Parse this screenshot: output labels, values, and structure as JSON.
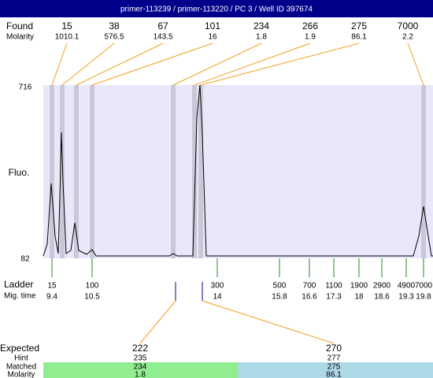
{
  "header": {
    "title": "primer-113239 / primer-113220 / PC 3 / Well ID 397674"
  },
  "found": {
    "label": "Found",
    "molarity_label": "Molarity",
    "sizes": [
      "15",
      "38",
      "67",
      "101",
      "234",
      "266",
      "275",
      "7000"
    ],
    "molarity": [
      "1010.1",
      "576.5",
      "143.5",
      "16",
      "1.8",
      "1.9",
      "86.1",
      "2.2"
    ]
  },
  "plot": {
    "y_max": "716",
    "y_min": "82",
    "y_label": "Fluo."
  },
  "ladder": {
    "label": "Ladder",
    "time_label": "Mig. time",
    "sizes": [
      "15",
      "100",
      "300",
      "500",
      "700",
      "1100",
      "1900",
      "2900",
      "4900",
      "7000"
    ],
    "times": [
      "9.4",
      "10.5",
      "14",
      "15.8",
      "16.6",
      "17.3",
      "18",
      "18.6",
      "19.3",
      "19.8"
    ]
  },
  "expected": {
    "label": "Expected",
    "hint_label": "Hint",
    "matched_label": "Matched",
    "molarity_label": "Molarity",
    "columns": [
      {
        "expected": "222",
        "hint": "235",
        "matched": "234",
        "molarity": "1.8"
      },
      {
        "expected": "270",
        "hint": "277",
        "matched": "275",
        "molarity": "86.1"
      }
    ]
  }
}
